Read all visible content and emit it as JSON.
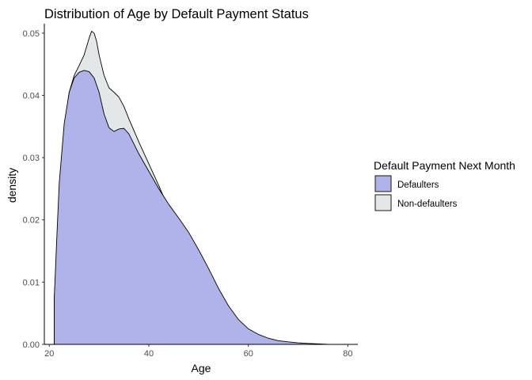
{
  "chart_data": {
    "type": "area",
    "title": "Distribution of Age by Default Payment Status",
    "xlabel": "Age",
    "ylabel": "density",
    "xlim": [
      19,
      82
    ],
    "ylim": [
      0,
      0.0515
    ],
    "x_ticks": [
      20,
      40,
      60,
      80
    ],
    "x_tick_labels": [
      "20",
      "40",
      "60",
      "80"
    ],
    "y_ticks": [
      0,
      0.01,
      0.02,
      0.03,
      0.04,
      0.05
    ],
    "y_tick_labels": [
      "0.00",
      "0.01",
      "0.02",
      "0.03",
      "0.04",
      "0.05"
    ],
    "grid": false,
    "legend": {
      "title": "Default Payment Next Month",
      "position": "right",
      "entries": [
        "Defaulters",
        "Non-defaulters"
      ]
    },
    "series": [
      {
        "name": "Non-defaulters",
        "color": "#e3e7e8",
        "x": [
          21,
          21.5,
          22,
          23,
          24,
          25,
          26,
          27,
          28,
          28.5,
          29,
          29.5,
          30,
          31,
          32,
          33,
          34,
          35,
          36,
          38,
          40,
          42,
          44,
          46,
          48,
          50,
          52,
          54,
          56,
          58,
          60,
          62,
          64,
          66,
          68,
          70,
          72,
          75
        ],
        "y": [
          0.0075,
          0.015,
          0.024,
          0.035,
          0.0405,
          0.0432,
          0.0448,
          0.0465,
          0.0492,
          0.0503,
          0.05,
          0.0487,
          0.0465,
          0.0432,
          0.0412,
          0.0405,
          0.0397,
          0.0382,
          0.0362,
          0.0325,
          0.029,
          0.0255,
          0.0218,
          0.0183,
          0.015,
          0.0118,
          0.0088,
          0.006,
          0.0038,
          0.0022,
          0.0013,
          0.0008,
          0.0005,
          0.0003,
          0.0002,
          0.0001,
          5e-05,
          0
        ]
      },
      {
        "name": "Defaulters",
        "color": "#b0b2ea",
        "x": [
          21,
          21.5,
          22,
          23,
          24,
          25,
          26,
          27,
          28,
          29,
          30,
          31,
          32,
          33,
          34,
          35,
          36,
          37,
          38,
          40,
          42,
          44,
          46,
          48,
          50,
          52,
          54,
          56,
          58,
          60,
          62,
          64,
          66,
          68,
          70,
          72,
          74,
          76
        ],
        "y": [
          0.0075,
          0.017,
          0.026,
          0.0355,
          0.0405,
          0.0428,
          0.0437,
          0.044,
          0.0438,
          0.0428,
          0.0405,
          0.037,
          0.0348,
          0.0342,
          0.0346,
          0.0347,
          0.0338,
          0.0322,
          0.0306,
          0.0278,
          0.025,
          0.0225,
          0.0203,
          0.018,
          0.0152,
          0.0122,
          0.009,
          0.0062,
          0.004,
          0.0025,
          0.0016,
          0.001,
          0.0006,
          0.0004,
          0.00025,
          0.00015,
          8e-05,
          0
        ]
      }
    ]
  }
}
